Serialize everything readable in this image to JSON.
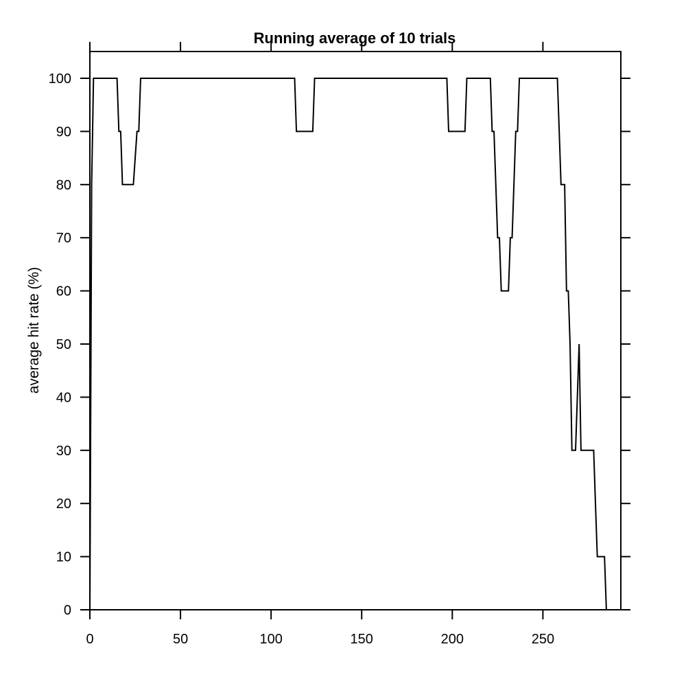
{
  "chart_data": {
    "type": "line",
    "title": "Running average of 10 trials",
    "xlabel": "",
    "ylabel": "average hit rate (%)",
    "xlim": [
      0,
      293
    ],
    "ylim": [
      0,
      105
    ],
    "x_ticks": [
      0,
      50,
      100,
      150,
      200,
      250
    ],
    "y_ticks": [
      0,
      10,
      20,
      30,
      40,
      50,
      60,
      70,
      80,
      90,
      100
    ],
    "grid": false,
    "legend": "none",
    "line_color": "#000000",
    "series": [
      {
        "x": [
          0,
          1,
          2,
          15,
          16,
          17,
          18,
          24,
          26,
          27,
          28,
          113,
          114,
          123,
          124,
          197,
          198,
          207,
          208,
          221,
          222,
          223,
          225,
          226,
          227,
          228,
          231,
          232,
          233,
          235,
          236,
          237,
          258,
          259,
          260,
          261,
          262,
          263,
          264,
          265,
          266,
          268,
          270,
          271,
          272,
          278,
          279,
          280,
          283,
          284,
          285,
          293
        ],
        "y": [
          0,
          80,
          100,
          100,
          90,
          90,
          80,
          80,
          90,
          90,
          100,
          100,
          90,
          90,
          100,
          100,
          90,
          90,
          100,
          100,
          90,
          90,
          70,
          70,
          60,
          60,
          60,
          70,
          70,
          90,
          90,
          100,
          100,
          90,
          80,
          80,
          80,
          60,
          60,
          50,
          30,
          30,
          50,
          30,
          30,
          30,
          20,
          10,
          10,
          10,
          0,
          0
        ]
      }
    ]
  }
}
